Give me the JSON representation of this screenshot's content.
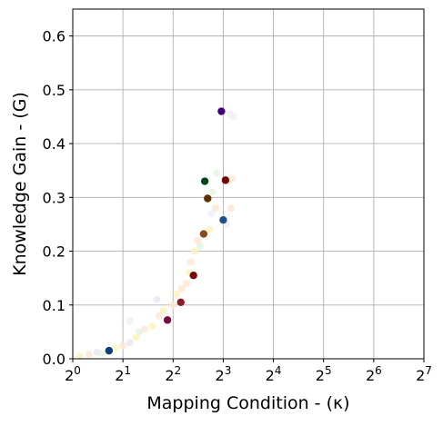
{
  "chart_data": {
    "type": "scatter",
    "xlabel": "Mapping Condition - (κ)",
    "ylabel": "Knowledge Gain - (G)",
    "x_scale": "log2",
    "xlim": [
      1,
      128
    ],
    "ylim": [
      0,
      0.65
    ],
    "x_ticks": [
      {
        "value": 1,
        "base": "2",
        "exp": "0"
      },
      {
        "value": 2,
        "base": "2",
        "exp": "1"
      },
      {
        "value": 4,
        "base": "2",
        "exp": "2"
      },
      {
        "value": 8,
        "base": "2",
        "exp": "3"
      },
      {
        "value": 16,
        "base": "2",
        "exp": "4"
      },
      {
        "value": 32,
        "base": "2",
        "exp": "5"
      },
      {
        "value": 64,
        "base": "2",
        "exp": "6"
      },
      {
        "value": 128,
        "base": "2",
        "exp": "7"
      }
    ],
    "y_ticks": [
      {
        "value": 0.0,
        "label": "0.0"
      },
      {
        "value": 0.1,
        "label": "0.1"
      },
      {
        "value": 0.2,
        "label": "0.2"
      },
      {
        "value": 0.3,
        "label": "0.3"
      },
      {
        "value": 0.4,
        "label": "0.4"
      },
      {
        "value": 0.5,
        "label": "0.5"
      },
      {
        "value": 0.6,
        "label": "0.6"
      }
    ],
    "grid": true,
    "highlighted_points": [
      {
        "x": 1.65,
        "y": 0.015,
        "color": "#0b3d7a"
      },
      {
        "x": 3.7,
        "y": 0.072,
        "color": "#7a0d3f"
      },
      {
        "x": 4.45,
        "y": 0.105,
        "color": "#8b1a2b"
      },
      {
        "x": 5.3,
        "y": 0.155,
        "color": "#7a0a0a"
      },
      {
        "x": 6.1,
        "y": 0.232,
        "color": "#8a4a1a"
      },
      {
        "x": 6.45,
        "y": 0.298,
        "color": "#5a3000"
      },
      {
        "x": 6.2,
        "y": 0.33,
        "color": "#00441b"
      },
      {
        "x": 8.0,
        "y": 0.258,
        "color": "#1f4e8c"
      },
      {
        "x": 8.25,
        "y": 0.332,
        "color": "#6a0a0a"
      },
      {
        "x": 7.8,
        "y": 0.46,
        "color": "#3f007d"
      }
    ],
    "background_points": [
      {
        "x": 1.1,
        "y": 0.005,
        "color": "#fdf3c0"
      },
      {
        "x": 1.25,
        "y": 0.008,
        "color": "#fde7d6"
      },
      {
        "x": 1.4,
        "y": 0.012,
        "color": "#eae6f5"
      },
      {
        "x": 1.5,
        "y": 0.01,
        "color": "#e5f5e0"
      },
      {
        "x": 1.8,
        "y": 0.02,
        "color": "#fdf3c0"
      },
      {
        "x": 2.0,
        "y": 0.025,
        "color": "#fde7d6"
      },
      {
        "x": 2.2,
        "y": 0.03,
        "color": "#eae6f5"
      },
      {
        "x": 2.4,
        "y": 0.04,
        "color": "#fdf3c0"
      },
      {
        "x": 2.5,
        "y": 0.05,
        "color": "#e5f5e0"
      },
      {
        "x": 2.7,
        "y": 0.055,
        "color": "#fde7d6"
      },
      {
        "x": 3.0,
        "y": 0.06,
        "color": "#fdf3c0"
      },
      {
        "x": 2.2,
        "y": 0.07,
        "color": "#eef0f8"
      },
      {
        "x": 3.3,
        "y": 0.08,
        "color": "#fde7d6"
      },
      {
        "x": 3.5,
        "y": 0.09,
        "color": "#fdf3c0"
      },
      {
        "x": 3.2,
        "y": 0.11,
        "color": "#eae6f5"
      },
      {
        "x": 4.0,
        "y": 0.1,
        "color": "#fde7d6"
      },
      {
        "x": 4.2,
        "y": 0.12,
        "color": "#fdf3c0"
      },
      {
        "x": 4.5,
        "y": 0.13,
        "color": "#fde7d6"
      },
      {
        "x": 4.8,
        "y": 0.14,
        "color": "#fde7d6"
      },
      {
        "x": 5.0,
        "y": 0.16,
        "color": "#fdf3c0"
      },
      {
        "x": 5.1,
        "y": 0.18,
        "color": "#fde7d6"
      },
      {
        "x": 5.4,
        "y": 0.2,
        "color": "#fdf3c0"
      },
      {
        "x": 5.8,
        "y": 0.21,
        "color": "#e5f5e0"
      },
      {
        "x": 5.6,
        "y": 0.22,
        "color": "#fde7d6"
      },
      {
        "x": 6.6,
        "y": 0.24,
        "color": "#fdf3c0"
      },
      {
        "x": 6.8,
        "y": 0.27,
        "color": "#eef0f8"
      },
      {
        "x": 7.2,
        "y": 0.28,
        "color": "#fde7d6"
      },
      {
        "x": 6.9,
        "y": 0.31,
        "color": "#e5f5e0"
      },
      {
        "x": 7.3,
        "y": 0.345,
        "color": "#e5f5e0"
      },
      {
        "x": 8.6,
        "y": 0.33,
        "color": "#fde7d6"
      },
      {
        "x": 9.0,
        "y": 0.335,
        "color": "#fde7d6"
      },
      {
        "x": 8.9,
        "y": 0.28,
        "color": "#fde7d6"
      },
      {
        "x": 8.8,
        "y": 0.455,
        "color": "#eef0f8"
      },
      {
        "x": 9.2,
        "y": 0.45,
        "color": "#eef0f8"
      },
      {
        "x": 8.4,
        "y": 0.25,
        "color": "#eef0f8"
      }
    ]
  }
}
